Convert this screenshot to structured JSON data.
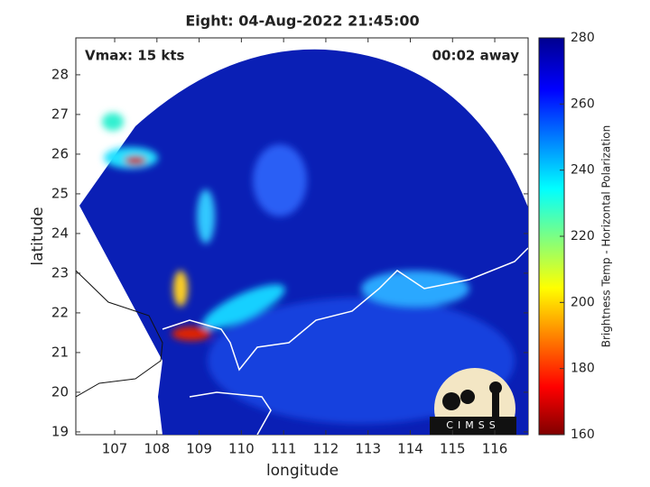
{
  "chart_data": {
    "type": "map",
    "title": "Eight: 04-Aug-2022 21:45:00",
    "annotations": [
      "Vmax: 15 kts",
      "00:02 away"
    ],
    "xlabel": "longitude",
    "ylabel": "latitude",
    "xlim": [
      106.08,
      116.79
    ],
    "xticks": [
      107,
      108,
      109,
      110,
      111,
      112,
      113,
      114,
      115,
      116
    ],
    "ylim": [
      18.93,
      28.93
    ],
    "yticks": [
      19,
      20,
      21,
      22,
      23,
      24,
      25,
      26,
      27,
      28
    ],
    "colorbar": {
      "label": "Brightness Temp - Horizontal Polarization",
      "lim": [
        160,
        280
      ],
      "ticks": [
        160,
        180,
        200,
        220,
        240,
        260,
        280
      ]
    },
    "logo": "CIMSS"
  }
}
